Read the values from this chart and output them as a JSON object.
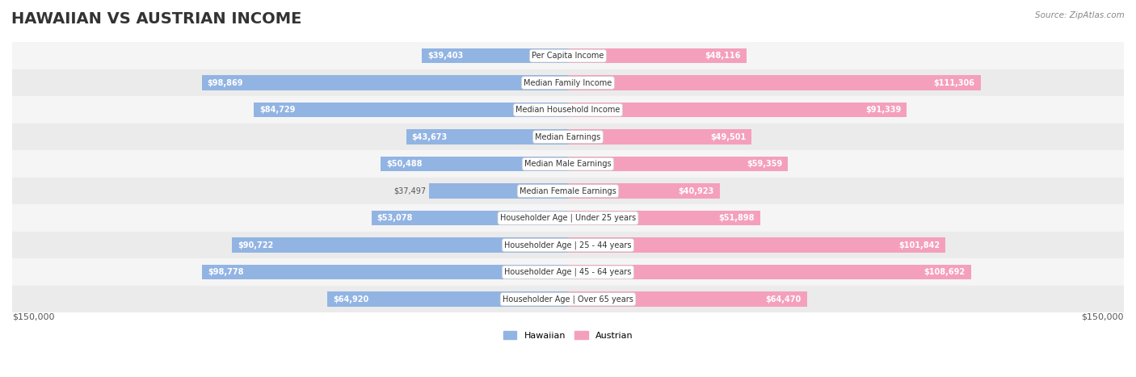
{
  "title": "HAWAIIAN VS AUSTRIAN INCOME",
  "source": "Source: ZipAtlas.com",
  "categories": [
    "Per Capita Income",
    "Median Family Income",
    "Median Household Income",
    "Median Earnings",
    "Median Male Earnings",
    "Median Female Earnings",
    "Householder Age | Under 25 years",
    "Householder Age | 25 - 44 years",
    "Householder Age | 45 - 64 years",
    "Householder Age | Over 65 years"
  ],
  "hawaiian_values": [
    39403,
    98869,
    84729,
    43673,
    50488,
    37497,
    53078,
    90722,
    98778,
    64920
  ],
  "austrian_values": [
    48116,
    111306,
    91339,
    49501,
    59359,
    40923,
    51898,
    101842,
    108692,
    64470
  ],
  "hawaiian_color_bar": "#92b4e3",
  "austrian_color_bar": "#f4a0bc",
  "hawaiian_color_dark": "#5b8fd4",
  "austrian_color_dark": "#f06090",
  "label_bg": "#f0f0f0",
  "row_bg_odd": "#f5f5f5",
  "row_bg_even": "#ebebeb",
  "max_value": 150000,
  "x_axis_label_left": "$150,000",
  "x_axis_label_right": "$150,000",
  "legend_hawaiian": "Hawaiian",
  "legend_austrian": "Austrian",
  "background_color": "#ffffff",
  "title_fontsize": 14,
  "bar_height": 0.55,
  "fig_width": 14.06,
  "fig_height": 4.67
}
